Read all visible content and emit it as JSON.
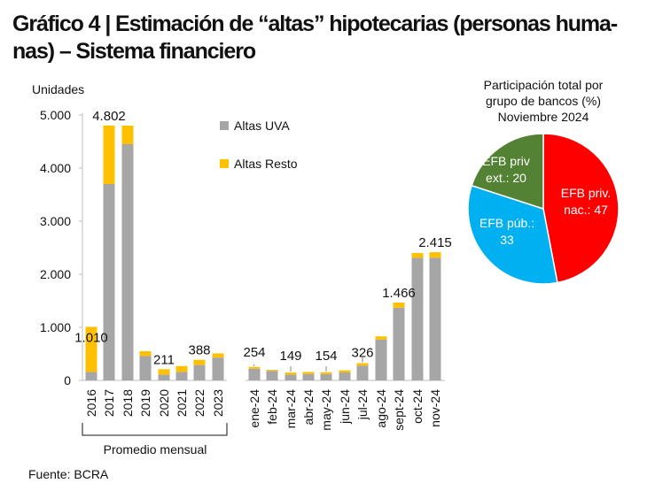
{
  "title": {
    "line1": "Gráfico 4 | Estimación de “altas” hipotecarias (personas huma-",
    "line2": "nas) – Sistema financiero"
  },
  "source": "Fuente: BCRA",
  "colors": {
    "uva": "#a6a6a6",
    "resto": "#ffc000",
    "nac": "#ff0000",
    "pub": "#00b0f0",
    "ext": "#548235"
  },
  "chart_data": [
    {
      "type": "bar",
      "stacked": true,
      "ylabel": "Unidades",
      "ylim": [
        0,
        5000
      ],
      "yticks": [
        "0",
        "1.000",
        "2.000",
        "3.000",
        "4.000",
        "5.000"
      ],
      "ytick_values": [
        0,
        1000,
        2000,
        3000,
        4000,
        5000
      ],
      "categories": [
        "2016",
        "2017",
        "2018",
        "2019",
        "2020",
        "2021",
        "2022",
        "2023",
        "ene-24",
        "feb-24",
        "mar-24",
        "abr-24",
        "may-24",
        "jun-24",
        "jul-24",
        "ago-24",
        "sept-24",
        "oct-24",
        "nov-24"
      ],
      "series": [
        {
          "name": "Altas UVA",
          "color": "#a6a6a6",
          "values": [
            160,
            3700,
            4450,
            460,
            110,
            160,
            290,
            430,
            220,
            180,
            110,
            120,
            120,
            150,
            280,
            770,
            1370,
            2310,
            2310
          ]
        },
        {
          "name": "Altas Resto",
          "color": "#ffc000",
          "values": [
            850,
            1102,
            350,
            90,
            101,
            110,
            98,
            80,
            34,
            20,
            39,
            40,
            34,
            40,
            46,
            60,
            96,
            90,
            105
          ]
        }
      ],
      "data_labels": [
        {
          "index": 0,
          "text": "1.010"
        },
        {
          "index": 1,
          "text": "4.802"
        },
        {
          "index": 4,
          "text": "211"
        },
        {
          "index": 6,
          "text": "388"
        },
        {
          "index": 8,
          "text": "254"
        },
        {
          "index": 10,
          "text": "149"
        },
        {
          "index": 12,
          "text": "154"
        },
        {
          "index": 14,
          "text": "326"
        },
        {
          "index": 16,
          "text": "1.466"
        },
        {
          "index": 18,
          "text": "2.415"
        }
      ],
      "group_label": "Promedio mensual",
      "legend": [
        {
          "name": "Altas UVA",
          "color": "#a6a6a6"
        },
        {
          "name": "Altas Resto",
          "color": "#ffc000"
        }
      ],
      "legend_position": "top-center",
      "grid": false
    },
    {
      "type": "pie",
      "title_lines": [
        "Participación total por",
        "grupo de bancos (%)",
        "Noviembre 2024"
      ],
      "slices": [
        {
          "label_lines": [
            "EFB priv.",
            "nac.: 47"
          ],
          "value": 47,
          "color": "#ff0000"
        },
        {
          "label_lines": [
            "EFB púb.:",
            "33"
          ],
          "value": 33,
          "color": "#00b0f0"
        },
        {
          "label_lines": [
            "EFB priv",
            "ext.: 20"
          ],
          "value": 20,
          "color": "#548235"
        }
      ]
    }
  ]
}
